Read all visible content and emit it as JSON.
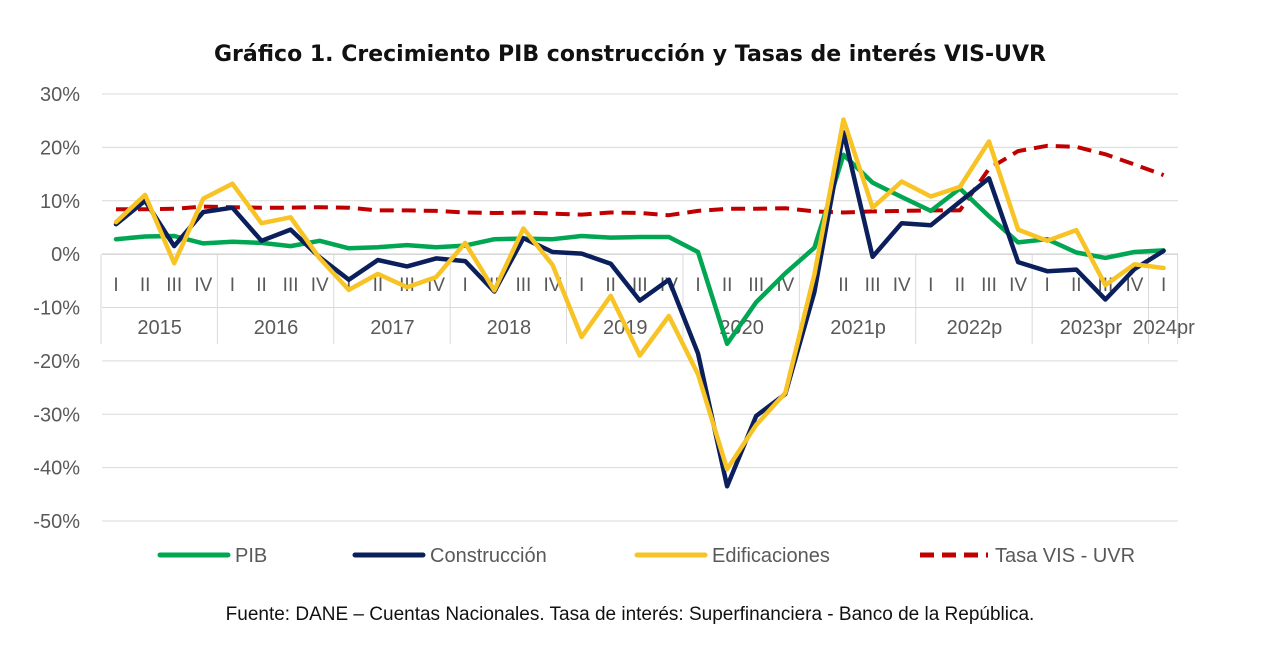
{
  "chart_data": {
    "type": "line",
    "title": "Gráfico 1. Crecimiento PIB construcción y Tasas de interés VIS-UVR",
    "source": "Fuente: DANE – Cuentas Nacionales. Tasa de interés: Superfinanciera - Banco de la República.",
    "ylim": [
      -50,
      30
    ],
    "yticks": [
      "30%",
      "20%",
      "10%",
      "0%",
      "-10%",
      "-20%",
      "-30%",
      "-40%",
      "-50%"
    ],
    "grid": true,
    "legend_position": "bottom",
    "x": [
      "2015-I",
      "2015-II",
      "2015-III",
      "2015-IV",
      "2016-I",
      "2016-II",
      "2016-III",
      "2016-IV",
      "2017-I",
      "2017-II",
      "2017-III",
      "2017-IV",
      "2018-I",
      "2018-II",
      "2018-III",
      "2018-IV",
      "2019-I",
      "2019-II",
      "2019-III",
      "2019-IV",
      "2020-I",
      "2020-II",
      "2020-III",
      "2020-IV",
      "2021p-I",
      "2021p-II",
      "2021p-III",
      "2021p-IV",
      "2022p-I",
      "2022p-II",
      "2022p-III",
      "2022p-IV",
      "2023pr-I",
      "2023pr-II",
      "2023pr-III",
      "2023pr-IV",
      "2024pr-I"
    ],
    "quarter_labels": [
      "I",
      "II",
      "III",
      "IV",
      "I",
      "II",
      "III",
      "IV",
      "I",
      "II",
      "III",
      "IV",
      "I",
      "II",
      "III",
      "IV",
      "I",
      "II",
      "III",
      "IV",
      "I",
      "II",
      "III",
      "IV",
      "I",
      "II",
      "III",
      "IV",
      "I",
      "II",
      "III",
      "IV",
      "I",
      "II",
      "III",
      "IV",
      "I"
    ],
    "year_labels": [
      "2015",
      "2016",
      "2017",
      "2018",
      "2019",
      "2020",
      "2021p",
      "2022p",
      "2023pr",
      "2024pr"
    ],
    "series": [
      {
        "name": "PIB",
        "color": "#00A651",
        "dash": false,
        "values": [
          2.8,
          3.3,
          3.4,
          2.0,
          2.3,
          2.1,
          1.5,
          2.5,
          1.1,
          1.3,
          1.7,
          1.3,
          1.6,
          2.8,
          2.9,
          2.8,
          3.4,
          3.1,
          3.2,
          3.2,
          0.4,
          -16.8,
          -9.0,
          -3.6,
          1.2,
          18.6,
          13.4,
          10.7,
          8.1,
          12.3,
          7.1,
          2.2,
          2.8,
          0.3,
          -0.7,
          0.4,
          0.7
        ]
      },
      {
        "name": "Construcción",
        "color": "#0B1F5C",
        "dash": false,
        "values": [
          5.6,
          10.0,
          1.5,
          7.9,
          8.7,
          2.5,
          4.6,
          -0.6,
          -4.8,
          -1.1,
          -2.3,
          -0.8,
          -1.3,
          -7.0,
          3.0,
          0.4,
          0.1,
          -1.8,
          -8.7,
          -4.8,
          -18.6,
          -43.5,
          -30.3,
          -26.2,
          -7.1,
          22.8,
          -0.5,
          5.8,
          5.4,
          9.8,
          14.2,
          -1.5,
          -3.2,
          -2.9,
          -8.5,
          -2.8,
          0.6
        ]
      },
      {
        "name": "Edificaciones",
        "color": "#F7C325",
        "dash": false,
        "values": [
          6.0,
          11.1,
          -1.7,
          10.4,
          13.2,
          5.8,
          6.9,
          -0.8,
          -6.7,
          -3.7,
          -6.2,
          -4.3,
          2.1,
          -6.8,
          4.8,
          -2.0,
          -15.5,
          -7.8,
          -19.0,
          -11.6,
          -22.5,
          -40.3,
          -32.0,
          -26.0,
          -3.8,
          25.2,
          8.7,
          13.6,
          10.8,
          12.6,
          21.1,
          4.6,
          2.5,
          4.5,
          -5.8,
          -1.9,
          -2.6
        ]
      },
      {
        "name": "Tasa VIS - UVR",
        "color": "#C00000",
        "dash": true,
        "values": [
          8.4,
          8.4,
          8.5,
          8.9,
          8.8,
          8.7,
          8.7,
          8.8,
          8.7,
          8.2,
          8.2,
          8.1,
          7.8,
          7.7,
          7.8,
          7.6,
          7.4,
          7.8,
          7.7,
          7.3,
          8.1,
          8.5,
          8.5,
          8.6,
          8.0,
          7.8,
          8.0,
          8.1,
          8.2,
          8.2,
          16.0,
          19.3,
          20.3,
          20.1,
          18.7,
          16.8,
          14.8
        ]
      }
    ]
  }
}
